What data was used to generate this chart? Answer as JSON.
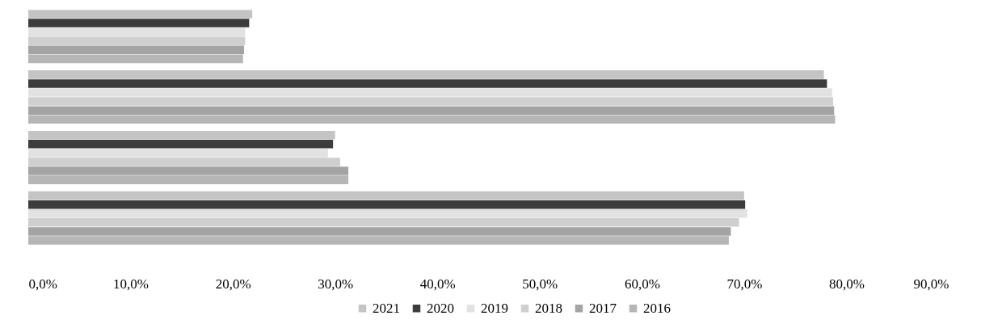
{
  "chart_data": {
    "type": "bar",
    "orientation": "horizontal",
    "categories": [
      null,
      null,
      null,
      null
    ],
    "series": [
      {
        "name": "2021",
        "color": "#c4c4c4",
        "values": [
          21.9,
          77.8,
          30.0,
          70.0
        ]
      },
      {
        "name": "2020",
        "color": "#3c3c3c",
        "values": [
          21.6,
          78.1,
          29.8,
          70.1
        ]
      },
      {
        "name": "2019",
        "color": "#e2e2e2",
        "values": [
          21.2,
          78.6,
          29.3,
          70.3
        ]
      },
      {
        "name": "2018",
        "color": "#cfcfcf",
        "values": [
          21.2,
          78.7,
          30.5,
          69.5
        ]
      },
      {
        "name": "2017",
        "color": "#a4a4a4",
        "values": [
          21.1,
          78.8,
          31.3,
          68.7
        ]
      },
      {
        "name": "2016",
        "color": "#b6b6b6",
        "values": [
          21.0,
          78.9,
          31.3,
          68.5
        ]
      }
    ],
    "xlim": [
      0,
      90
    ],
    "xticks": [
      {
        "value": 0,
        "label": "0,0%"
      },
      {
        "value": 10,
        "label": "10,0%"
      },
      {
        "value": 20,
        "label": "20,0%"
      },
      {
        "value": 30,
        "label": "30,0%"
      },
      {
        "value": 40,
        "label": "40,0%"
      },
      {
        "value": 50,
        "label": "50,0%"
      },
      {
        "value": 60,
        "label": "60,0%"
      },
      {
        "value": 70,
        "label": "70,0%"
      },
      {
        "value": 80,
        "label": "80,0%"
      },
      {
        "value": 90,
        "label": "90,0%"
      }
    ],
    "tick_labels": "x",
    "grid": false,
    "legend": "bottom"
  }
}
